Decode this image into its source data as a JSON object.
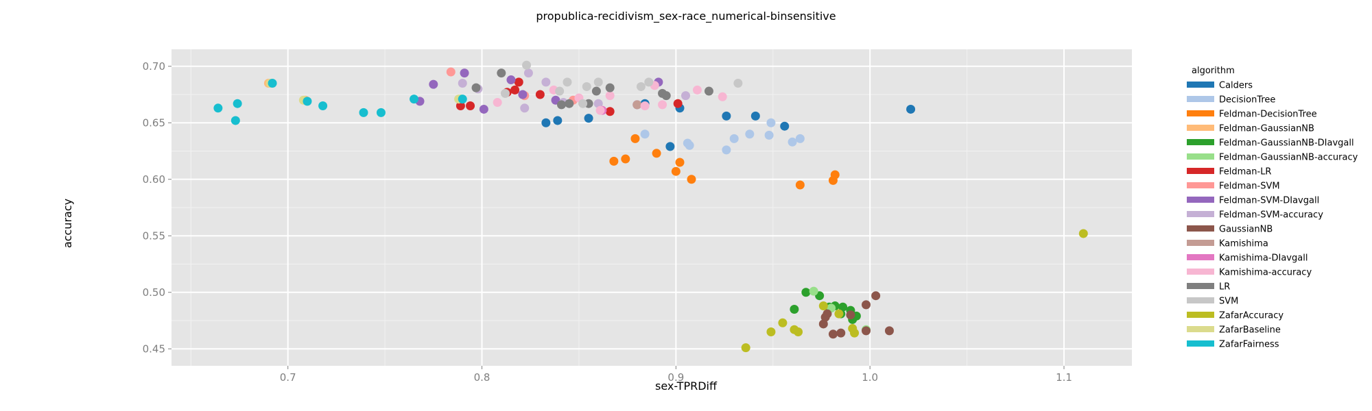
{
  "chart_data": {
    "type": "scatter",
    "title": "propublica-recidivism_sex-race_numerical-binsensitive",
    "xlabel": "sex-TPRDiff",
    "ylabel": "accuracy",
    "xlim": [
      0.64,
      1.135
    ],
    "ylim": [
      0.435,
      0.715
    ],
    "xticks": [
      0.7,
      0.8,
      0.9,
      1.0,
      1.1
    ],
    "xtick_labels": [
      "0.7",
      "0.8",
      "0.9",
      "1.0",
      "1.1"
    ],
    "yticks": [
      0.45,
      0.5,
      0.55,
      0.6,
      0.65,
      0.7
    ],
    "ytick_labels": [
      "0.45",
      "0.50",
      "0.55",
      "0.60",
      "0.65",
      "0.70"
    ],
    "grid": true,
    "legend_title": "algorithm",
    "legend_position": "right",
    "series": [
      {
        "name": "Calders",
        "color": "#1f77b4",
        "points": [
          [
            0.833,
            0.65
          ],
          [
            0.839,
            0.652
          ],
          [
            0.855,
            0.654
          ],
          [
            0.884,
            0.667
          ],
          [
            0.897,
            0.629
          ],
          [
            0.902,
            0.663
          ],
          [
            0.926,
            0.656
          ],
          [
            0.941,
            0.656
          ],
          [
            0.956,
            0.647
          ],
          [
            1.021,
            0.662
          ]
        ]
      },
      {
        "name": "DecisionTree",
        "color": "#aec7e8",
        "points": [
          [
            0.884,
            0.64
          ],
          [
            0.906,
            0.632
          ],
          [
            0.907,
            0.63
          ],
          [
            0.926,
            0.626
          ],
          [
            0.93,
            0.636
          ],
          [
            0.938,
            0.64
          ],
          [
            0.948,
            0.639
          ],
          [
            0.949,
            0.65
          ],
          [
            0.96,
            0.633
          ],
          [
            0.964,
            0.636
          ]
        ]
      },
      {
        "name": "Feldman-DecisionTree",
        "color": "#ff7f0e",
        "points": [
          [
            0.868,
            0.616
          ],
          [
            0.874,
            0.618
          ],
          [
            0.879,
            0.636
          ],
          [
            0.89,
            0.623
          ],
          [
            0.9,
            0.607
          ],
          [
            0.902,
            0.615
          ],
          [
            0.908,
            0.6
          ],
          [
            0.964,
            0.595
          ],
          [
            0.981,
            0.599
          ],
          [
            0.982,
            0.604
          ]
        ]
      },
      {
        "name": "Feldman-GaussianNB",
        "color": "#ffbb78",
        "points": [
          [
            0.69,
            0.685
          ],
          [
            0.709,
            0.67
          ]
        ]
      },
      {
        "name": "Feldman-GaussianNB-DIavgall",
        "color": "#2ca02c",
        "points": [
          [
            0.961,
            0.485
          ],
          [
            0.967,
            0.5
          ],
          [
            0.974,
            0.497
          ],
          [
            0.979,
            0.487
          ],
          [
            0.982,
            0.488
          ],
          [
            0.985,
            0.481
          ],
          [
            0.99,
            0.484
          ],
          [
            0.991,
            0.476
          ],
          [
            0.986,
            0.487
          ],
          [
            0.993,
            0.479
          ]
        ]
      },
      {
        "name": "Feldman-GaussianNB-accuracy",
        "color": "#98df8a",
        "points": [
          [
            0.971,
            0.501
          ],
          [
            0.998,
            0.467
          ],
          [
            0.789,
            0.671
          ],
          [
            0.98,
            0.486
          ]
        ]
      },
      {
        "name": "Feldman-LR",
        "color": "#d62728",
        "points": [
          [
            0.789,
            0.665
          ],
          [
            0.794,
            0.665
          ],
          [
            0.813,
            0.677
          ],
          [
            0.817,
            0.679
          ],
          [
            0.819,
            0.686
          ],
          [
            0.83,
            0.675
          ],
          [
            0.866,
            0.66
          ],
          [
            0.901,
            0.667
          ]
        ]
      },
      {
        "name": "Feldman-SVM",
        "color": "#ff9896",
        "points": [
          [
            0.784,
            0.695
          ],
          [
            0.822,
            0.674
          ],
          [
            0.847,
            0.67
          ]
        ]
      },
      {
        "name": "Feldman-SVM-DIavgall",
        "color": "#9467bd",
        "points": [
          [
            0.768,
            0.669
          ],
          [
            0.775,
            0.684
          ],
          [
            0.791,
            0.694
          ],
          [
            0.801,
            0.662
          ],
          [
            0.815,
            0.688
          ],
          [
            0.821,
            0.675
          ],
          [
            0.838,
            0.67
          ],
          [
            0.88,
            0.666
          ],
          [
            0.891,
            0.686
          ]
        ]
      },
      {
        "name": "Feldman-SVM-accuracy",
        "color": "#c5b0d5",
        "points": [
          [
            0.79,
            0.685
          ],
          [
            0.798,
            0.68
          ],
          [
            0.822,
            0.663
          ],
          [
            0.824,
            0.694
          ],
          [
            0.833,
            0.686
          ],
          [
            0.842,
            0.668
          ],
          [
            0.86,
            0.667
          ],
          [
            0.905,
            0.674
          ]
        ]
      },
      {
        "name": "GaussianNB",
        "color": "#8c564b",
        "points": [
          [
            0.976,
            0.472
          ],
          [
            0.977,
            0.478
          ],
          [
            0.981,
            0.463
          ],
          [
            0.985,
            0.464
          ],
          [
            0.978,
            0.481
          ],
          [
            0.99,
            0.48
          ],
          [
            0.998,
            0.489
          ],
          [
            0.998,
            0.466
          ],
          [
            1.003,
            0.497
          ],
          [
            1.01,
            0.466
          ]
        ]
      },
      {
        "name": "Kamishima",
        "color": "#c49c94",
        "points": [
          [
            0.88,
            0.666
          ]
        ]
      },
      {
        "name": "Kamishima-DIavgall",
        "color": "#e377c2",
        "points": [
          [
            0.862,
            0.661
          ]
        ]
      },
      {
        "name": "Kamishima-accuracy",
        "color": "#f7b6d2",
        "points": [
          [
            0.808,
            0.668
          ],
          [
            0.837,
            0.679
          ],
          [
            0.85,
            0.672
          ],
          [
            0.861,
            0.661
          ],
          [
            0.866,
            0.674
          ],
          [
            0.884,
            0.665
          ],
          [
            0.889,
            0.683
          ],
          [
            0.893,
            0.666
          ],
          [
            0.911,
            0.679
          ],
          [
            0.924,
            0.673
          ]
        ]
      },
      {
        "name": "LR",
        "color": "#7f7f7f",
        "points": [
          [
            0.797,
            0.681
          ],
          [
            0.81,
            0.694
          ],
          [
            0.841,
            0.666
          ],
          [
            0.845,
            0.667
          ],
          [
            0.855,
            0.667
          ],
          [
            0.859,
            0.678
          ],
          [
            0.866,
            0.681
          ],
          [
            0.893,
            0.676
          ],
          [
            0.895,
            0.674
          ],
          [
            0.917,
            0.678
          ]
        ]
      },
      {
        "name": "SVM",
        "color": "#c7c7c7",
        "points": [
          [
            0.812,
            0.676
          ],
          [
            0.823,
            0.701
          ],
          [
            0.84,
            0.678
          ],
          [
            0.844,
            0.686
          ],
          [
            0.852,
            0.667
          ],
          [
            0.854,
            0.682
          ],
          [
            0.86,
            0.686
          ],
          [
            0.882,
            0.682
          ],
          [
            0.886,
            0.686
          ],
          [
            0.932,
            0.685
          ]
        ]
      },
      {
        "name": "ZafarAccuracy",
        "color": "#bcbd22",
        "points": [
          [
            0.936,
            0.451
          ],
          [
            0.949,
            0.465
          ],
          [
            0.955,
            0.473
          ],
          [
            0.961,
            0.467
          ],
          [
            0.963,
            0.465
          ],
          [
            0.976,
            0.488
          ],
          [
            0.984,
            0.481
          ],
          [
            0.992,
            0.464
          ],
          [
            0.991,
            0.468
          ],
          [
            1.11,
            0.552
          ]
        ]
      },
      {
        "name": "ZafarBaseline",
        "color": "#dbdb8d",
        "points": [
          [
            0.691,
            0.685
          ],
          [
            0.708,
            0.67
          ],
          [
            0.788,
            0.671
          ]
        ]
      },
      {
        "name": "ZafarFairness",
        "color": "#17becf",
        "points": [
          [
            0.664,
            0.663
          ],
          [
            0.673,
            0.652
          ],
          [
            0.674,
            0.667
          ],
          [
            0.692,
            0.685
          ],
          [
            0.71,
            0.669
          ],
          [
            0.718,
            0.665
          ],
          [
            0.739,
            0.659
          ],
          [
            0.748,
            0.659
          ],
          [
            0.765,
            0.671
          ],
          [
            0.79,
            0.671
          ]
        ]
      }
    ]
  }
}
